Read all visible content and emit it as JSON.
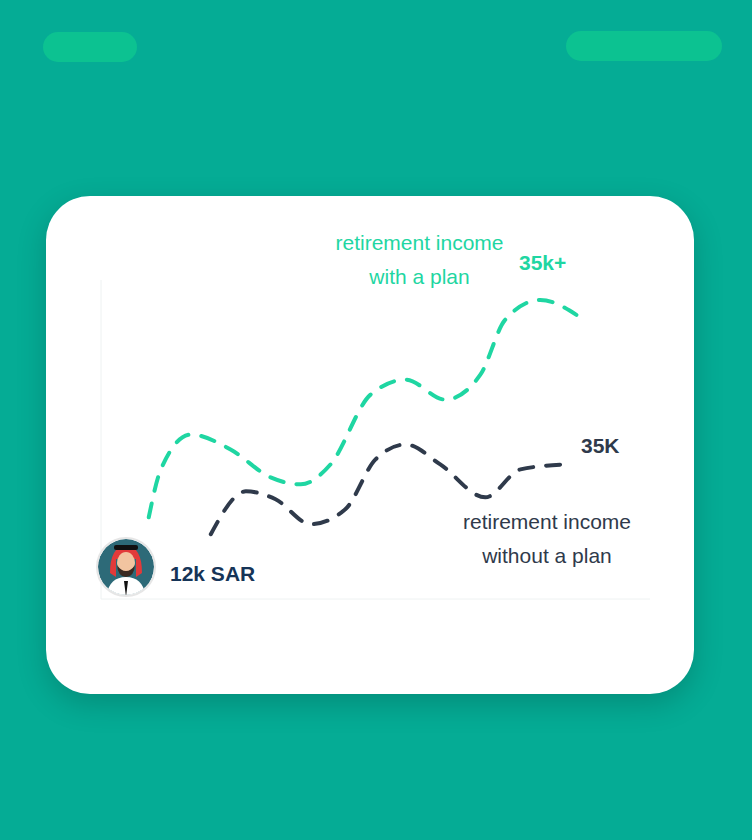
{
  "chart_data": {
    "type": "line",
    "xlim": [
      0,
      100
    ],
    "ylim": [
      0,
      80
    ],
    "tick_labels": false,
    "grid": false,
    "series": [
      {
        "name": "retirement income with a plan",
        "color": "#1fd6a2",
        "line_style": "dashed",
        "x": [
          8.7,
          10.9,
          16.4,
          23.6,
          30.9,
          36.4,
          41.8,
          49.1,
          55.5,
          62.7,
          69.1,
          73.6,
          80,
          86.9
        ],
        "values": [
          20.5,
          32.5,
          41.25,
          37.5,
          30.5,
          28.75,
          33.75,
          51.25,
          55,
          50,
          56.25,
          70,
          75,
          71
        ]
      },
      {
        "name": "retirement income without a plan",
        "color": "#2f3a4b",
        "line_style": "dashed",
        "x": [
          20,
          26.4,
          31.8,
          38.2,
          44.5,
          50,
          55.5,
          61.8,
          70,
          76.4,
          84.5
        ],
        "values": [
          16.25,
          27,
          25,
          18.75,
          22.5,
          35,
          38.75,
          33.75,
          25.5,
          32.5,
          33.75
        ]
      }
    ],
    "annotations": [
      "35k+",
      "35K",
      "12k SAR"
    ]
  }
}
